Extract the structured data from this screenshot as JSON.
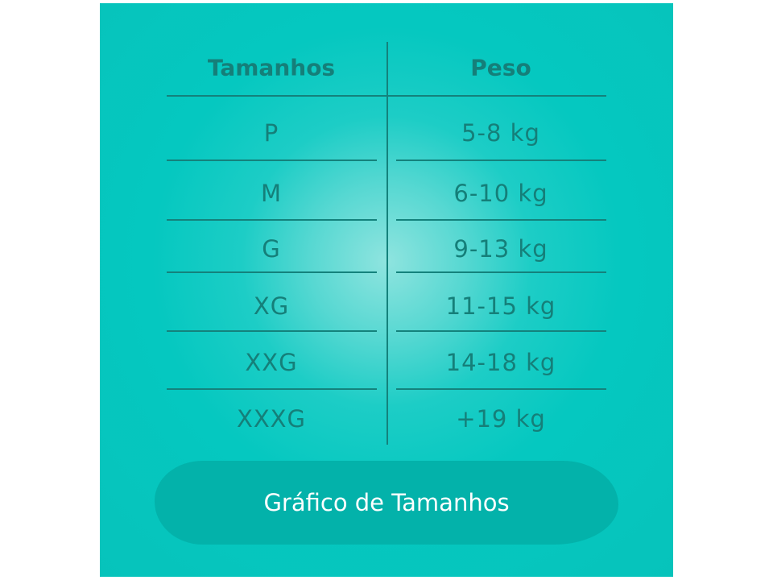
{
  "table": {
    "headers": [
      "Tamanhos",
      "Peso"
    ],
    "rows": [
      {
        "size": "P",
        "weight": "5-8 kg"
      },
      {
        "size": "M",
        "weight": "6-10 kg"
      },
      {
        "size": "G",
        "weight": "9-13 kg"
      },
      {
        "size": "XG",
        "weight": "11-15 kg"
      },
      {
        "size": "XXG",
        "weight": "14-18 kg"
      },
      {
        "size": "XXXG",
        "weight": "+19 kg"
      }
    ]
  },
  "banner": {
    "label": "Gráfico de Tamanhos"
  },
  "colors": {
    "background": "#05c8c0",
    "text": "#157f79",
    "banner": "#03b2aa",
    "banner_text": "#ffffff"
  }
}
